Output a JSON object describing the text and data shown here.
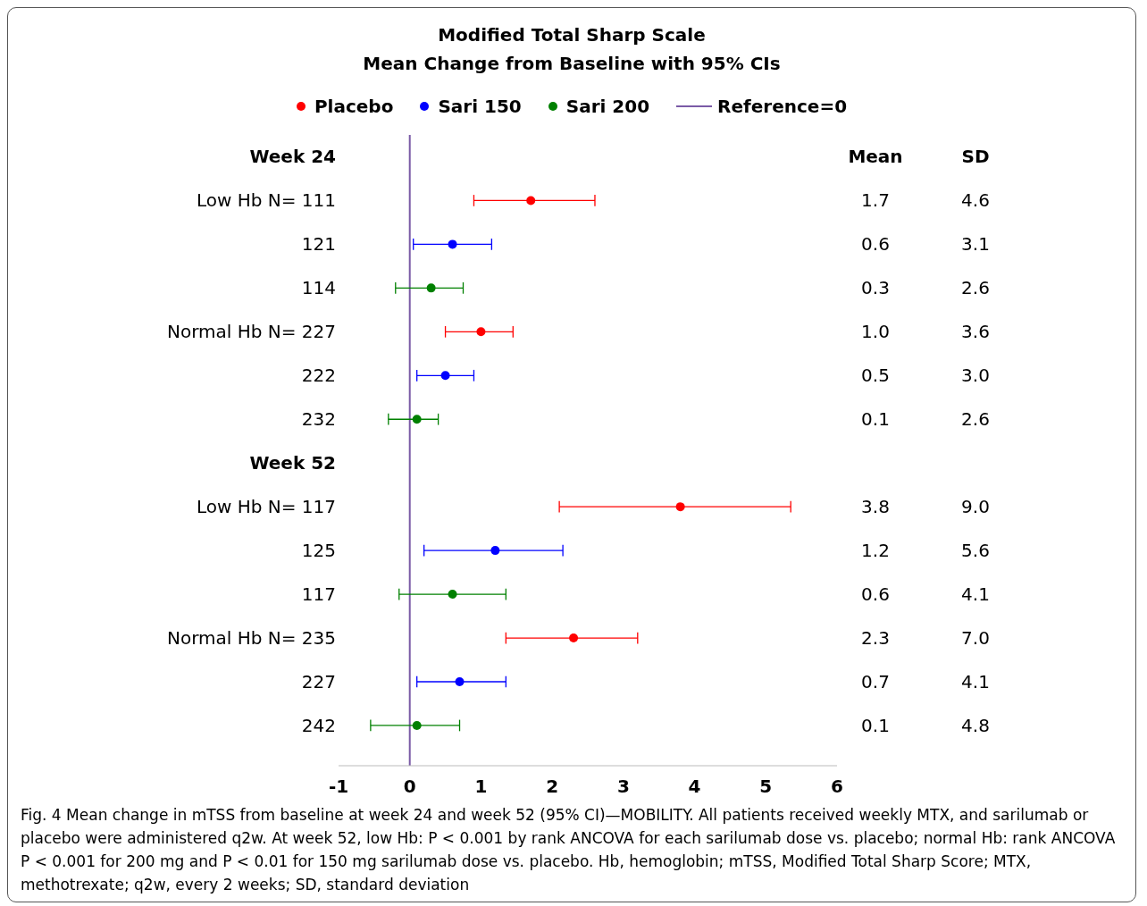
{
  "chart_data": [
    {
      "type": "scatter",
      "orientation": "horizontal",
      "title": "Modified Total Sharp Scale",
      "subtitle": "Mean Change from Baseline with 95% CIs",
      "categories": [
        "Week 24",
        "Low Hb N= 111",
        "121",
        "114",
        "Normal Hb N= 227",
        "222",
        "232",
        "Week 52",
        "Low Hb N= 117",
        "125",
        "117",
        "Normal Hb N= 235",
        "227",
        "242"
      ],
      "series": [
        {
          "name": "Placebo",
          "color": "#ff0000",
          "values": [
            null,
            1.7,
            null,
            null,
            1.0,
            null,
            null,
            null,
            3.8,
            null,
            null,
            2.3,
            null,
            null
          ],
          "errors": [
            null,
            [
              0.9,
              2.6
            ],
            null,
            null,
            [
              0.5,
              1.45
            ],
            null,
            null,
            null,
            [
              2.1,
              5.35
            ],
            null,
            null,
            [
              1.35,
              3.2
            ],
            null,
            null
          ]
        },
        {
          "name": "Sari 150",
          "color": "#0000ff",
          "values": [
            null,
            null,
            0.6,
            null,
            null,
            0.5,
            null,
            null,
            null,
            1.2,
            null,
            null,
            0.7,
            null
          ],
          "errors": [
            null,
            null,
            [
              0.05,
              1.15
            ],
            null,
            null,
            [
              0.1,
              0.9
            ],
            null,
            null,
            null,
            [
              0.2,
              2.15
            ],
            null,
            null,
            [
              0.1,
              1.35
            ],
            null
          ]
        },
        {
          "name": "Sari 200",
          "color": "#008000",
          "values": [
            null,
            null,
            null,
            0.3,
            null,
            null,
            0.1,
            null,
            null,
            null,
            0.6,
            null,
            null,
            0.1
          ],
          "errors": [
            null,
            null,
            null,
            [
              -0.2,
              0.75
            ],
            null,
            null,
            [
              -0.3,
              0.4
            ],
            null,
            null,
            null,
            [
              -0.15,
              1.35
            ],
            null,
            null,
            [
              -0.55,
              0.7
            ]
          ]
        }
      ],
      "xlim": [
        -1,
        6
      ],
      "xticks": [
        -1,
        0,
        1,
        2,
        3,
        4,
        5,
        6
      ],
      "ref_lines": [
        {
          "axis": "x",
          "value": 0,
          "label": "Reference=0",
          "color": "#7a5aa6"
        }
      ],
      "legend": "top",
      "marker": "circle",
      "annotations": [
        "Fig. 4 Mean change in mTSS from baseline at week 24 and week 52 (95% CI)—MOBILITY. All patients received weekly MTX, and sarilumab or placebo were administered q2w. At week 52, low Hb: P < 0.001 by rank ANCOVA for each sarilumab dose vs. placebo; normal Hb: rank ANCOVA P < 0.001 for 200 mg and P < 0.01 for 150 mg sarilumab dose vs. placebo. Hb, hemoglobin; mTSS, Modified Total Sharp Score; MTX, methotrexate; q2w, every 2 weeks; SD, standard deviation"
      ]
    },
    {
      "type": "other",
      "annotations": [
        "Mean",
        "SD",
        "1.7",
        "4.6",
        "0.6",
        "3.1",
        "0.3",
        "2.6",
        "1.0",
        "3.6",
        "0.5",
        "3.0",
        "0.1",
        "2.6",
        "3.8",
        "9.0",
        "1.2",
        "5.6",
        "0.6",
        "4.1",
        "2.3",
        "7.0",
        "0.7",
        "4.1",
        "0.1",
        "4.8"
      ]
    }
  ]
}
